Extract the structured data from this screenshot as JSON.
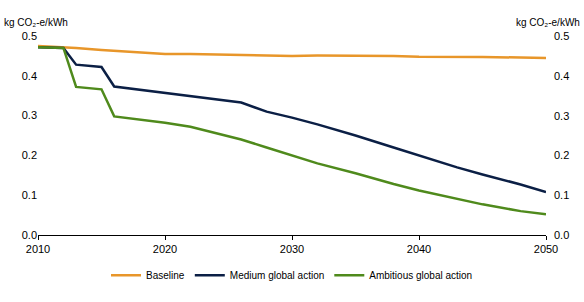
{
  "chart_data": {
    "type": "line",
    "y_label": "kg CO₂-e/kWh",
    "y2_label": "kg CO₂-e/kWh",
    "x": [
      2010,
      2012,
      2013,
      2015,
      2016,
      2018,
      2020,
      2022,
      2024,
      2026,
      2028,
      2030,
      2032,
      2035,
      2038,
      2040,
      2043,
      2045,
      2048,
      2050
    ],
    "series": [
      {
        "name": "Baseline",
        "color": "#e8962a",
        "values": [
          0.475,
          0.472,
          0.47,
          0.465,
          0.463,
          0.459,
          0.455,
          0.455,
          0.454,
          0.453,
          0.451,
          0.45,
          0.451,
          0.451,
          0.45,
          0.448,
          0.448,
          0.447,
          0.446,
          0.445
        ]
      },
      {
        "name": "Medium global action",
        "color": "#0b1f45",
        "values": [
          0.472,
          0.47,
          0.428,
          0.422,
          0.373,
          0.365,
          0.357,
          0.35,
          0.342,
          0.333,
          0.31,
          0.295,
          0.278,
          0.25,
          0.22,
          0.2,
          0.17,
          0.152,
          0.127,
          0.108
        ]
      },
      {
        "name": "Ambitious global action",
        "color": "#4f8a1c",
        "values": [
          0.472,
          0.47,
          0.372,
          0.366,
          0.298,
          0.29,
          0.282,
          0.272,
          0.256,
          0.24,
          0.22,
          0.2,
          0.18,
          0.155,
          0.128,
          0.112,
          0.09,
          0.077,
          0.06,
          0.052
        ]
      }
    ],
    "xlim": [
      2010,
      2050
    ],
    "xticks": [
      2010,
      2020,
      2030,
      2040,
      2050
    ],
    "ylim": [
      0,
      0.5
    ],
    "yticks": [
      {
        "value": 0,
        "label": "0.0"
      },
      0.1,
      0.2,
      0.3,
      0.4,
      0.5
    ],
    "y2lim": [
      0,
      0.5
    ],
    "y2ticks": [
      {
        "value": 0,
        "label": "0.0"
      },
      0.1,
      0.2,
      0.3,
      0.4,
      0.5
    ],
    "grid": false,
    "legend": "bottom"
  }
}
